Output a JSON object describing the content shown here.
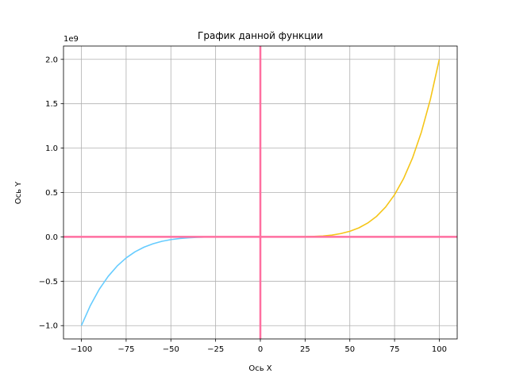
{
  "chart_data": {
    "type": "line",
    "title": "График данной функции",
    "xlabel": "Ось X",
    "ylabel": "Ось Y",
    "y_offset_label": "1e9",
    "xlim": [
      -110,
      110
    ],
    "ylim": [
      -1.15,
      2.15
    ],
    "y_scale_factor": 1000000000,
    "grid": true,
    "x_ticks": [
      -100,
      -75,
      -50,
      -25,
      0,
      25,
      50,
      75,
      100
    ],
    "x_tick_labels": [
      "−100",
      "−75",
      "−50",
      "−25",
      "0",
      "25",
      "50",
      "75",
      "100"
    ],
    "y_ticks": [
      -1.0,
      -0.5,
      0.0,
      0.5,
      1.0,
      1.5,
      2.0
    ],
    "y_tick_labels": [
      "−1.0",
      "−0.5",
      "0.0",
      "0.5",
      "1.0",
      "1.5",
      "2.0"
    ],
    "series": [
      {
        "color": "#66ccff",
        "x": [
          -100,
          -95,
          -90,
          -85,
          -80,
          -75,
          -70,
          -65,
          -60,
          -55,
          -50,
          -45,
          -40,
          -35,
          -30,
          -25,
          -20,
          -15,
          -10,
          -5,
          0
        ],
        "y": [
          -1.0,
          -0.774,
          -0.59,
          -0.444,
          -0.328,
          -0.237,
          -0.168,
          -0.116,
          -0.078,
          -0.05,
          -0.031,
          -0.018,
          -0.01,
          -0.005,
          -0.002,
          -0.001,
          0.0,
          0.0,
          0.0,
          0.0,
          0.0
        ]
      },
      {
        "color": "#f5c518",
        "x": [
          0,
          5,
          10,
          15,
          20,
          25,
          30,
          35,
          40,
          45,
          50,
          55,
          60,
          65,
          70,
          75,
          80,
          85,
          90,
          95,
          100
        ],
        "y": [
          0.0,
          0.0,
          0.0,
          0.0,
          0.001,
          0.002,
          0.005,
          0.01,
          0.02,
          0.037,
          0.063,
          0.101,
          0.156,
          0.232,
          0.336,
          0.475,
          0.655,
          0.887,
          1.181,
          1.548,
          2.0
        ]
      },
      {
        "color": "#ff6fa0",
        "role": "horizontal-axis-line",
        "x": [
          -110,
          110
        ],
        "y": [
          0,
          0
        ]
      },
      {
        "color": "#ff6fa0",
        "role": "vertical-axis-line",
        "x": [
          0,
          0
        ],
        "y": [
          -1.15,
          2.15
        ]
      }
    ]
  }
}
